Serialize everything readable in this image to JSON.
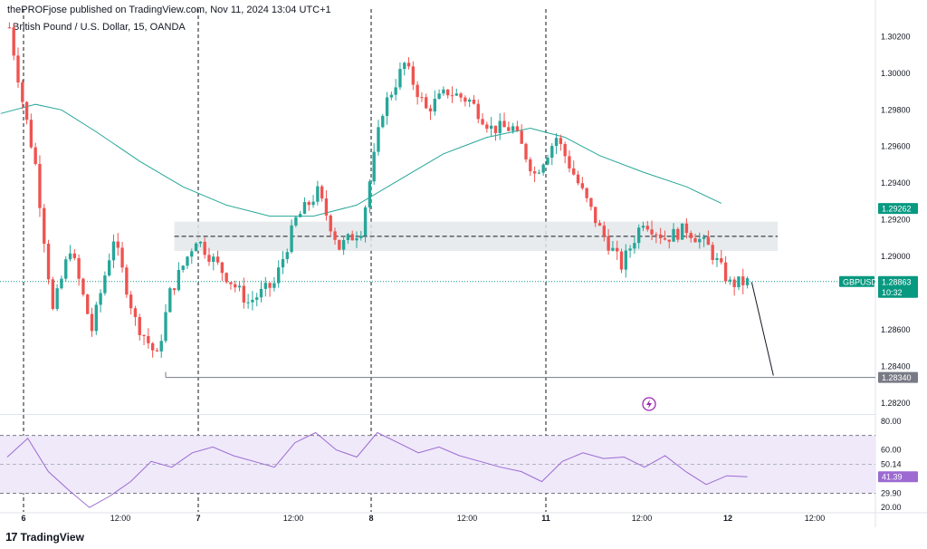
{
  "header": {
    "published": "thePROFjose published on TradingView.com, Nov 11, 2024 13:04 UTC+1",
    "symbol": "British Pound / U.S. Dollar, 15, OANDA"
  },
  "footer": {
    "logo_glyph": "17",
    "brand": "TradingView"
  },
  "colors": {
    "up": "#26a69a",
    "down": "#ef5350",
    "ma": "#26a69a",
    "rsi": "#9c6ad1",
    "rsi_band": "#efe9fa",
    "zone": "#e3e7ea",
    "accent": "#089981"
  },
  "chart_data": [
    {
      "type": "candlestick",
      "title": "British Pound / U.S. Dollar, 15, OANDA",
      "ylim": [
        1.2815,
        1.3035
      ],
      "y_ticks": [
        "1.30200",
        "1.30000",
        "1.29800",
        "1.29600",
        "1.29400",
        "1.29200",
        "1.29000",
        "1.28600",
        "1.28400",
        "1.28200"
      ],
      "x_ticks": [
        "6",
        "12:00",
        "7",
        "12:00",
        "8",
        "12:00",
        "11",
        "12:00",
        "12",
        "12:00"
      ],
      "x_session_index": [
        0,
        1,
        2,
        3,
        4,
        5,
        6,
        7,
        8,
        9
      ],
      "session_separators": [
        "6",
        "7",
        "8",
        "11"
      ],
      "price_path": [
        [
          0,
          1.3025
        ],
        [
          3,
          1.2985
        ],
        [
          6,
          1.295
        ],
        [
          10,
          1.287
        ],
        [
          14,
          1.2905
        ],
        [
          19,
          1.286
        ],
        [
          24,
          1.291
        ],
        [
          29,
          1.2865
        ],
        [
          34,
          1.2845
        ],
        [
          37,
          1.288
        ],
        [
          43,
          1.291
        ],
        [
          48,
          1.2895
        ],
        [
          55,
          1.2875
        ],
        [
          61,
          1.2885
        ],
        [
          66,
          1.292
        ],
        [
          71,
          1.2935
        ],
        [
          76,
          1.2905
        ],
        [
          81,
          1.2915
        ],
        [
          86,
          1.298
        ],
        [
          91,
          1.3005
        ],
        [
          96,
          1.298
        ],
        [
          101,
          1.299
        ],
        [
          106,
          1.2985
        ],
        [
          111,
          1.297
        ],
        [
          116,
          1.297
        ],
        [
          121,
          1.2945
        ],
        [
          126,
          1.2965
        ],
        [
          131,
          1.294
        ],
        [
          136,
          1.2915
        ],
        [
          141,
          1.2895
        ],
        [
          146,
          1.292
        ],
        [
          151,
          1.291
        ],
        [
          156,
          1.2915
        ],
        [
          161,
          1.2905
        ],
        [
          166,
          1.2885
        ],
        [
          170,
          1.2886
        ]
      ],
      "moving_average": [
        [
          -2,
          1.2978
        ],
        [
          6,
          1.2983
        ],
        [
          12,
          1.298
        ],
        [
          20,
          1.2968
        ],
        [
          30,
          1.2952
        ],
        [
          40,
          1.2938
        ],
        [
          50,
          1.2928
        ],
        [
          60,
          1.2922
        ],
        [
          70,
          1.2922
        ],
        [
          80,
          1.2928
        ],
        [
          90,
          1.2942
        ],
        [
          100,
          1.2956
        ],
        [
          110,
          1.2965
        ],
        [
          120,
          1.297
        ],
        [
          128,
          1.2965
        ],
        [
          136,
          1.2955
        ],
        [
          146,
          1.2946
        ],
        [
          156,
          1.2938
        ],
        [
          164,
          1.2929
        ]
      ],
      "resistance_zone": {
        "low": 1.2903,
        "high": 1.2919,
        "mid": 1.2911,
        "from_bar": 38,
        "to_bar": 177
      },
      "support_line": {
        "price": 1.2834,
        "from_bar": 36,
        "to_bar": 170
      },
      "projection": {
        "from": [
          171,
          1.2886
        ],
        "to": [
          176,
          1.2835
        ]
      },
      "current_price": {
        "symbol": "GBPUSD",
        "price": "1.28863",
        "countdown": "10:32"
      },
      "price_labels": [
        {
          "text": "1.29262",
          "price": 1.29262,
          "style": "green"
        },
        {
          "text": "1.28340",
          "price": 1.2834,
          "style": "gray"
        }
      ]
    },
    {
      "type": "line",
      "title": "",
      "series": [
        {
          "values": [
            55,
            68,
            45,
            32,
            20,
            28,
            38,
            52,
            48,
            58,
            62,
            56,
            52,
            48,
            65,
            72,
            60,
            55,
            72,
            65,
            58,
            62,
            56,
            52,
            48,
            45,
            38,
            52,
            58,
            54,
            55,
            48,
            56,
            45,
            36,
            42,
            41.39
          ]
        }
      ],
      "ylim": [
        17,
        83
      ],
      "y_ticks": [
        "80.00",
        "60.00",
        "20.00"
      ],
      "band": [
        29.9,
        70.0
      ],
      "levels": [
        {
          "text": "50.14",
          "value": 50.14
        },
        {
          "text": "29.90",
          "value": 29.9
        }
      ],
      "current": "41.39"
    }
  ]
}
